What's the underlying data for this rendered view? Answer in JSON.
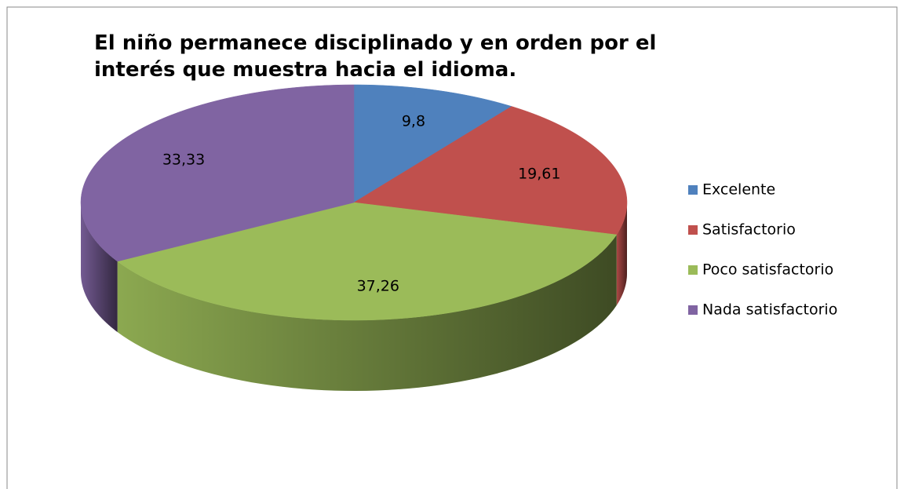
{
  "chart_data": {
    "type": "pie",
    "title": "El niño permanece disciplinado y en orden por el interés que muestra hacia el idioma.",
    "categories": [
      "Excelente",
      "Satisfactorio",
      "Poco satisfactorio",
      "Nada satisfactorio"
    ],
    "values": [
      9.8,
      19.61,
      37.26,
      33.33
    ],
    "value_labels": [
      "9,8",
      "19,61",
      "37,26",
      "33,33"
    ],
    "colors": [
      "#4f81bd",
      "#c0504d",
      "#9bbb59",
      "#8064a2"
    ],
    "legend": "right"
  }
}
